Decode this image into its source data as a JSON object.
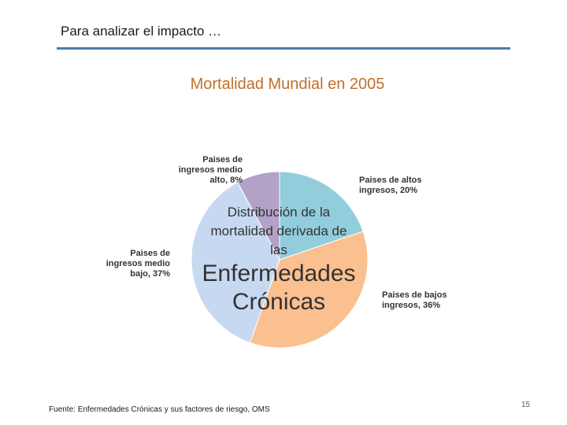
{
  "slide": {
    "heading": "Para analizar el impacto …",
    "rule_color": "#4f7ca6",
    "source": "Fuente: Enfermedades Crónicas y sus factores de riesgo, OMS",
    "page_number": "15"
  },
  "chart_data": {
    "type": "pie",
    "title": "Mortalidad Mundial en 2005",
    "title_color": "#c0702a",
    "center_text": {
      "lines": [
        "Distribución de la",
        "mortalidad derivada de",
        "las"
      ],
      "emphasis": [
        "Enfermedades",
        "Crónicas"
      ]
    },
    "slices": [
      {
        "label": "Paises de altos ingresos, 20%",
        "lines": [
          "Paises de altos",
          "ingresos, 20%"
        ],
        "value": 20,
        "color": "#92cddc"
      },
      {
        "label": "Paises de bajos ingresos, 36%",
        "lines": [
          "Paises de bajos",
          "ingresos, 36%"
        ],
        "value": 36,
        "color": "#fac090"
      },
      {
        "label": "Paises de ingresos medio bajo, 37%",
        "lines": [
          "Paises de",
          "ingresos medio",
          "bajo, 37%"
        ],
        "value": 37,
        "color": "#c6d9f1"
      },
      {
        "label": "Paises de ingresos medio alto, 8%",
        "lines": [
          "Paises de",
          "ingresos medio",
          "alto, 8%"
        ],
        "value": 8,
        "color": "#b3a2c7"
      }
    ]
  }
}
